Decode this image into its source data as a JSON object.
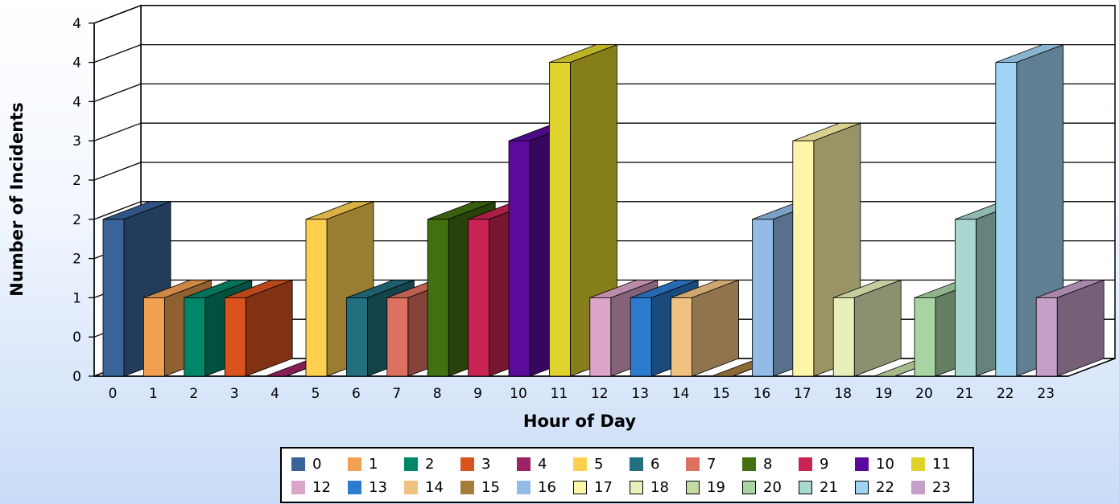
{
  "chart_data": {
    "type": "bar",
    "xlabel": "Hour of Day",
    "ylabel": "Number of Incidents",
    "ylim": [
      0,
      4.5
    ],
    "y_tick_labels": [
      "0",
      "0",
      "1",
      "2",
      "2",
      "2",
      "3",
      "4",
      "4",
      "4"
    ],
    "grid": true,
    "legend_position": "bottom",
    "categories": [
      "0",
      "1",
      "2",
      "3",
      "4",
      "5",
      "6",
      "7",
      "8",
      "9",
      "10",
      "11",
      "12",
      "13",
      "14",
      "15",
      "16",
      "17",
      "18",
      "19",
      "20",
      "21",
      "22",
      "23"
    ],
    "values": [
      2,
      1,
      1,
      1,
      0,
      2,
      1,
      1,
      2,
      2,
      3,
      4,
      1,
      1,
      1,
      0,
      2,
      3,
      1,
      0,
      1,
      2,
      4,
      1
    ],
    "colors": [
      "#3a6499",
      "#f0a050",
      "#00876a",
      "#d9531e",
      "#9c2363",
      "#ffd050",
      "#22707f",
      "#dd7060",
      "#437010",
      "#c82352",
      "#5c0a9c",
      "#e0d22c",
      "#dca4c8",
      "#2d7bcf",
      "#f0c282",
      "#a47c3c",
      "#94bbe6",
      "#fff5a8",
      "#e8f0ba",
      "#c4dca4",
      "#a8d4a4",
      "#a8d8d0",
      "#a0d4f4",
      "#c4a0c8"
    ]
  }
}
